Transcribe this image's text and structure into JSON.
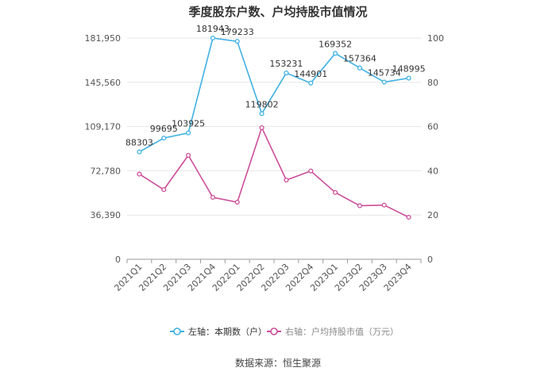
{
  "chart_data": {
    "type": "line",
    "title": "季度股东户数、户均持股市值情况",
    "categories": [
      "2021Q1",
      "2021Q2",
      "2021Q3",
      "2021Q4",
      "2022Q1",
      "2022Q2",
      "2022Q3",
      "2022Q4",
      "2023Q1",
      "2023Q2",
      "2023Q3",
      "2023Q4"
    ],
    "series": [
      {
        "name": "左轴：本期数（户）",
        "axis": "left",
        "color": "#3fb1e3",
        "values": [
          88303,
          99695,
          103925,
          181943,
          179233,
          119802,
          153231,
          144901,
          169352,
          157364,
          145734,
          148995
        ]
      },
      {
        "name": "右轴：户均持股市值（万元）",
        "axis": "right",
        "color": "#cc4e9a",
        "values": [
          38.5,
          31.5,
          47.0,
          28.0,
          25.8,
          59.5,
          35.8,
          39.9,
          30.2,
          24.2,
          24.5,
          19.0
        ]
      }
    ],
    "left_axis": {
      "min": 0,
      "max": 181950,
      "ticks": [
        "0",
        "36,390",
        "72,780",
        "109,170",
        "145,560",
        "181,950"
      ]
    },
    "right_axis": {
      "min": 0,
      "max": 100,
      "ticks": [
        "0",
        "20",
        "40",
        "60",
        "80",
        "100"
      ]
    },
    "grid": true,
    "legend_position": "bottom",
    "source": "数据来源：恒生聚源"
  }
}
